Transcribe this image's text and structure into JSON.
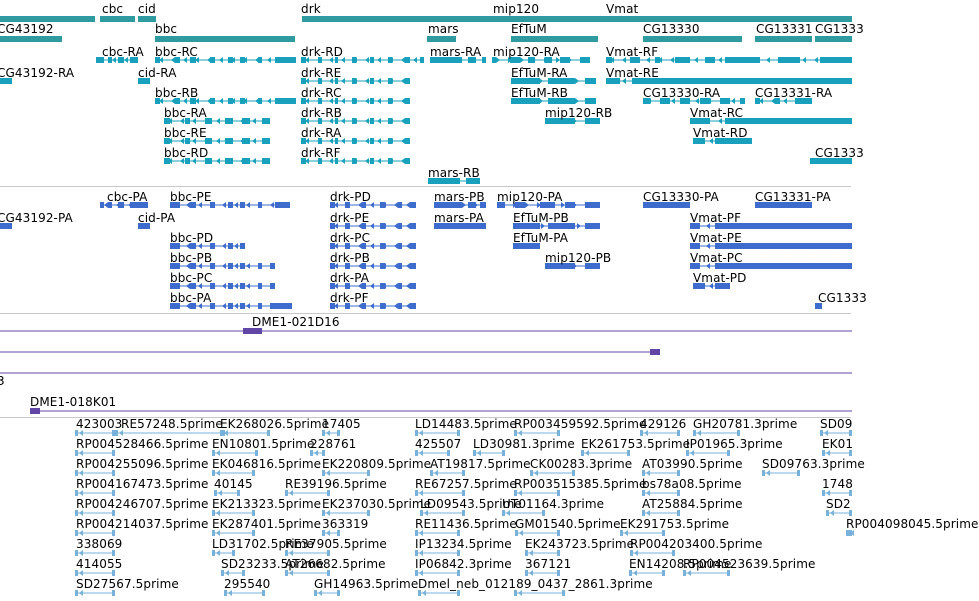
{
  "colors": {
    "gene": "#2f9ba1",
    "transcript": "#18a0bd",
    "protein": "#3d6ccd",
    "clone": "#6146a5",
    "est": "#78b1d9",
    "divider": "#c8c8c8"
  },
  "tracks": {
    "genes": [
      {
        "name": "cbc",
        "label": "cbc"
      },
      {
        "name": "cid",
        "label": "cid"
      },
      {
        "name": "drk",
        "label": "drk"
      },
      {
        "name": "mip120",
        "label": "mip120"
      },
      {
        "name": "vmat",
        "label": "Vmat"
      },
      {
        "name": "cg43192",
        "label": "CG43192"
      },
      {
        "name": "bbc",
        "label": "bbc"
      },
      {
        "name": "mars",
        "label": "mars"
      },
      {
        "name": "eftum",
        "label": "EfTuM"
      },
      {
        "name": "cg13330",
        "label": "CG13330"
      },
      {
        "name": "cg13331",
        "label": "CG13331"
      },
      {
        "name": "cg1333x",
        "label": "CG1333"
      }
    ],
    "transcripts": [
      {
        "name": "cbc-ra",
        "label": "cbc-RA"
      },
      {
        "name": "bbc-rc",
        "label": "bbc-RC"
      },
      {
        "name": "drk-rd",
        "label": "drk-RD"
      },
      {
        "name": "mars-ra",
        "label": "mars-RA"
      },
      {
        "name": "mip120-ra",
        "label": "mip120-RA"
      },
      {
        "name": "vmat-rf",
        "label": "Vmat-RF"
      },
      {
        "name": "cg43192-ra",
        "label": "CG43192-RA"
      },
      {
        "name": "cid-ra",
        "label": "cid-RA"
      },
      {
        "name": "drk-re",
        "label": "drk-RE"
      },
      {
        "name": "eftum-ra",
        "label": "EfTuM-RA"
      },
      {
        "name": "vmat-re",
        "label": "Vmat-RE"
      },
      {
        "name": "bbc-rb",
        "label": "bbc-RB"
      },
      {
        "name": "drk-rc",
        "label": "drk-RC"
      },
      {
        "name": "eftum-rb",
        "label": "EfTuM-RB"
      },
      {
        "name": "cg13330-ra",
        "label": "CG13330-RA"
      },
      {
        "name": "cg13331-ra",
        "label": "CG13331-RA"
      },
      {
        "name": "bbc-ra",
        "label": "bbc-RA"
      },
      {
        "name": "drk-rb",
        "label": "drk-RB"
      },
      {
        "name": "mip120-rb",
        "label": "mip120-RB"
      },
      {
        "name": "vmat-rc",
        "label": "Vmat-RC"
      },
      {
        "name": "bbc-re",
        "label": "bbc-RE"
      },
      {
        "name": "drk-ra",
        "label": "drk-RA"
      },
      {
        "name": "vmat-rd",
        "label": "Vmat-RD"
      },
      {
        "name": "bbc-rd",
        "label": "bbc-RD"
      },
      {
        "name": "drk-rf",
        "label": "drk-RF"
      },
      {
        "name": "cg1333-r",
        "label": "CG1333"
      },
      {
        "name": "mars-rb",
        "label": "mars-RB"
      }
    ],
    "proteins": [
      {
        "name": "cbc-pa",
        "label": "cbc-PA"
      },
      {
        "name": "bbc-pe",
        "label": "bbc-PE"
      },
      {
        "name": "drk-pd",
        "label": "drk-PD"
      },
      {
        "name": "mars-pb",
        "label": "mars-PB"
      },
      {
        "name": "mip120-pa",
        "label": "mip120-PA"
      },
      {
        "name": "cg13330-pa",
        "label": "CG13330-PA"
      },
      {
        "name": "cg13331-pa",
        "label": "CG13331-PA"
      },
      {
        "name": "cg43192-pa",
        "label": "CG43192-PA"
      },
      {
        "name": "cid-pa",
        "label": "cid-PA"
      },
      {
        "name": "drk-pe",
        "label": "drk-PE"
      },
      {
        "name": "mars-pa",
        "label": "mars-PA"
      },
      {
        "name": "eftum-pb",
        "label": "EfTuM-PB"
      },
      {
        "name": "vmat-pf",
        "label": "Vmat-PF"
      },
      {
        "name": "bbc-pd",
        "label": "bbc-PD"
      },
      {
        "name": "drk-pc",
        "label": "drk-PC"
      },
      {
        "name": "eftum-pa",
        "label": "EfTuM-PA"
      },
      {
        "name": "vmat-pe",
        "label": "Vmat-PE"
      },
      {
        "name": "bbc-pb",
        "label": "bbc-PB"
      },
      {
        "name": "drk-pb",
        "label": "drk-PB"
      },
      {
        "name": "mip120-pb",
        "label": "mip120-PB"
      },
      {
        "name": "vmat-pc",
        "label": "Vmat-PC"
      },
      {
        "name": "bbc-pc",
        "label": "bbc-PC"
      },
      {
        "name": "drk-pa",
        "label": "drk-PA"
      },
      {
        "name": "vmat-pd",
        "label": "Vmat-PD"
      },
      {
        "name": "bbc-pa",
        "label": "bbc-PA"
      },
      {
        "name": "drk-pf",
        "label": "drk-PF"
      },
      {
        "name": "cg1333-p",
        "label": "CG1333"
      }
    ],
    "clones": [
      {
        "name": "dme1-021d16",
        "label": "DME1-021D16"
      },
      {
        "name": "clone-partial",
        "label": "3"
      },
      {
        "name": "dme1-018k01",
        "label": "DME1-018K01"
      }
    ],
    "ests": [
      "423003",
      "RE57248.5prime",
      "EK268026.5prime",
      "17405",
      "LD14483.5prime",
      "RP003459592.5prime",
      "429126",
      "GH20781.3prime",
      "SD09",
      "RP004528466.5prime",
      "EN10801.5prime",
      "228761",
      "425507",
      "LD30981.3prime",
      "EK261753.5prime",
      "IP01965.3prime",
      "EK01",
      "RP004255096.5prime",
      "EK046816.5prime",
      "EK220809.5prime",
      "AT19817.5prime",
      "CK00283.3prime",
      "AT03990.5prime",
      "SD09763.3prime",
      "RP004167473.5prime",
      "40145",
      "RE39196.5prime",
      "RE67257.5prime",
      "RP003515385.5prime",
      "bs78a08.5prime",
      "1748",
      "RP004246707.5prime",
      "EK213323.5prime",
      "EK237030.5prime",
      "LD09543.5prime",
      "UT01164.3prime",
      "AT25884.5prime",
      "SD2",
      "RP004214037.5prime",
      "EK287401.5prime",
      "363319",
      "RE11436.5prime",
      "GM01540.5prime",
      "EK291753.5prime",
      "RP004098045.5prime",
      "338069",
      "LD31702.5prime",
      "RE37905.5prime",
      "IP13234.5prime",
      "EK243723.5prime",
      "RP004203400.5prime",
      "414055",
      "SD23233.5prime",
      "AT26682.5prime",
      "IP06842.3prime",
      "367121",
      "EN14208.5prime",
      "RP004523639.5prime",
      "SD27567.5prime",
      "295540",
      "GH14963.5prime",
      "Dmel_neb_012189_0437_2861.3prime"
    ]
  }
}
